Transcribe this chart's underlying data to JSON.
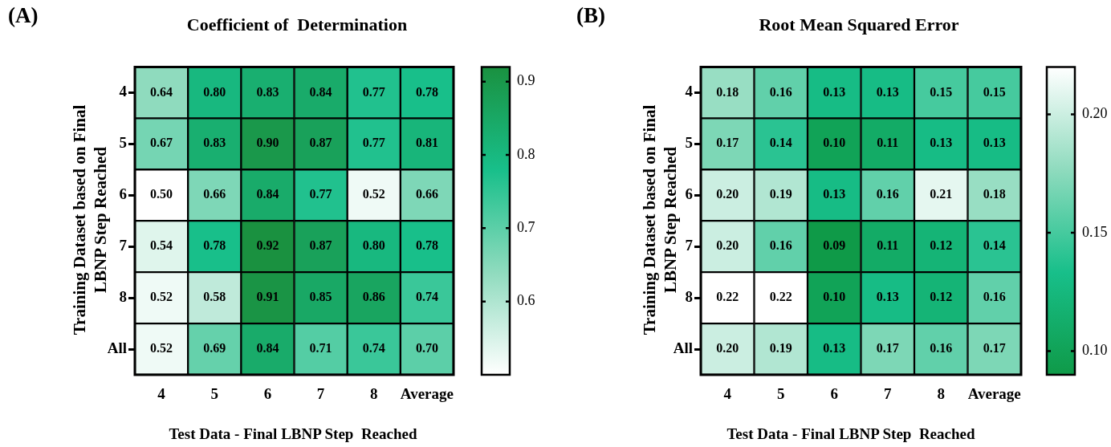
{
  "chart_data": [
    {
      "type": "heatmap",
      "title": "Coefficient of  Determination",
      "xlabel": "Test Data - Final LBNP Step  Reached",
      "ylabel": "Training Dataset based on Final LBNP Step Reached",
      "annotations": [
        "(A)"
      ],
      "categories": [
        "4",
        "5",
        "6",
        "7",
        "8",
        "Average"
      ],
      "y_categories": [
        "4",
        "5",
        "6",
        "7",
        "8",
        "All"
      ],
      "cells": [
        [
          0.64,
          0.8,
          0.83,
          0.84,
          0.77,
          0.78
        ],
        [
          0.67,
          0.83,
          0.9,
          0.87,
          0.77,
          0.81
        ],
        [
          0.5,
          0.66,
          0.84,
          0.77,
          0.52,
          0.66
        ],
        [
          0.54,
          0.78,
          0.92,
          0.87,
          0.8,
          0.78
        ],
        [
          0.52,
          0.58,
          0.91,
          0.85,
          0.86,
          0.74
        ],
        [
          0.52,
          0.69,
          0.84,
          0.71,
          0.74,
          0.7
        ]
      ],
      "cell_labels": [
        [
          "0.64",
          "0.80",
          "0.83",
          "0.84",
          "0.77",
          "0.78"
        ],
        [
          "0.67",
          "0.83",
          "0.90",
          "0.87",
          "0.77",
          "0.81"
        ],
        [
          "0.50",
          "0.66",
          "0.84",
          "0.77",
          "0.52",
          "0.66"
        ],
        [
          "0.54",
          "0.78",
          "0.92",
          "0.87",
          "0.80",
          "0.78"
        ],
        [
          "0.52",
          "0.58",
          "0.91",
          "0.85",
          "0.86",
          "0.74"
        ],
        [
          "0.52",
          "0.69",
          "0.84",
          "0.71",
          "0.74",
          "0.70"
        ]
      ],
      "clim": [
        0.5,
        0.92
      ],
      "cticks": [
        0.6,
        0.7,
        0.8,
        0.9
      ],
      "colors": [
        "#ffffff",
        "#8fdbbe",
        "#18bf8a",
        "#1a9140"
      ]
    },
    {
      "type": "heatmap",
      "title": "Root Mean Squared Error",
      "xlabel": "Test Data - Final LBNP Step  Reached",
      "ylabel": "Training Dataset based on Final LBNP Step Reached",
      "annotations": [
        "(B)"
      ],
      "categories": [
        "4",
        "5",
        "6",
        "7",
        "8",
        "Average"
      ],
      "y_categories": [
        "4",
        "5",
        "6",
        "7",
        "8",
        "All"
      ],
      "cells": [
        [
          0.18,
          0.16,
          0.13,
          0.13,
          0.15,
          0.15
        ],
        [
          0.17,
          0.14,
          0.1,
          0.11,
          0.13,
          0.13
        ],
        [
          0.2,
          0.19,
          0.13,
          0.16,
          0.21,
          0.18
        ],
        [
          0.2,
          0.16,
          0.09,
          0.11,
          0.12,
          0.14
        ],
        [
          0.22,
          0.22,
          0.1,
          0.13,
          0.12,
          0.16
        ],
        [
          0.2,
          0.19,
          0.13,
          0.17,
          0.16,
          0.17
        ]
      ],
      "cell_labels": [
        [
          "0.18",
          "0.16",
          "0.13",
          "0.13",
          "0.15",
          "0.15"
        ],
        [
          "0.17",
          "0.14",
          "0.10",
          "0.11",
          "0.13",
          "0.13"
        ],
        [
          "0.20",
          "0.19",
          "0.13",
          "0.16",
          "0.21",
          "0.18"
        ],
        [
          "0.20",
          "0.16",
          "0.09",
          "0.11",
          "0.12",
          "0.14"
        ],
        [
          "0.22",
          "0.22",
          "0.10",
          "0.13",
          "0.12",
          "0.16"
        ],
        [
          "0.20",
          "0.19",
          "0.13",
          "0.17",
          "0.16",
          "0.17"
        ]
      ],
      "clim": [
        0.09,
        0.22
      ],
      "cticks": [
        {
          "value": 0.1,
          "label": "0.10"
        },
        0.15,
        {
          "value": 0.2,
          "label": "0.20"
        }
      ],
      "colors": [
        "#0f9a48",
        "#18bf8a",
        "#8fdbbe",
        "#ffffff"
      ]
    }
  ]
}
